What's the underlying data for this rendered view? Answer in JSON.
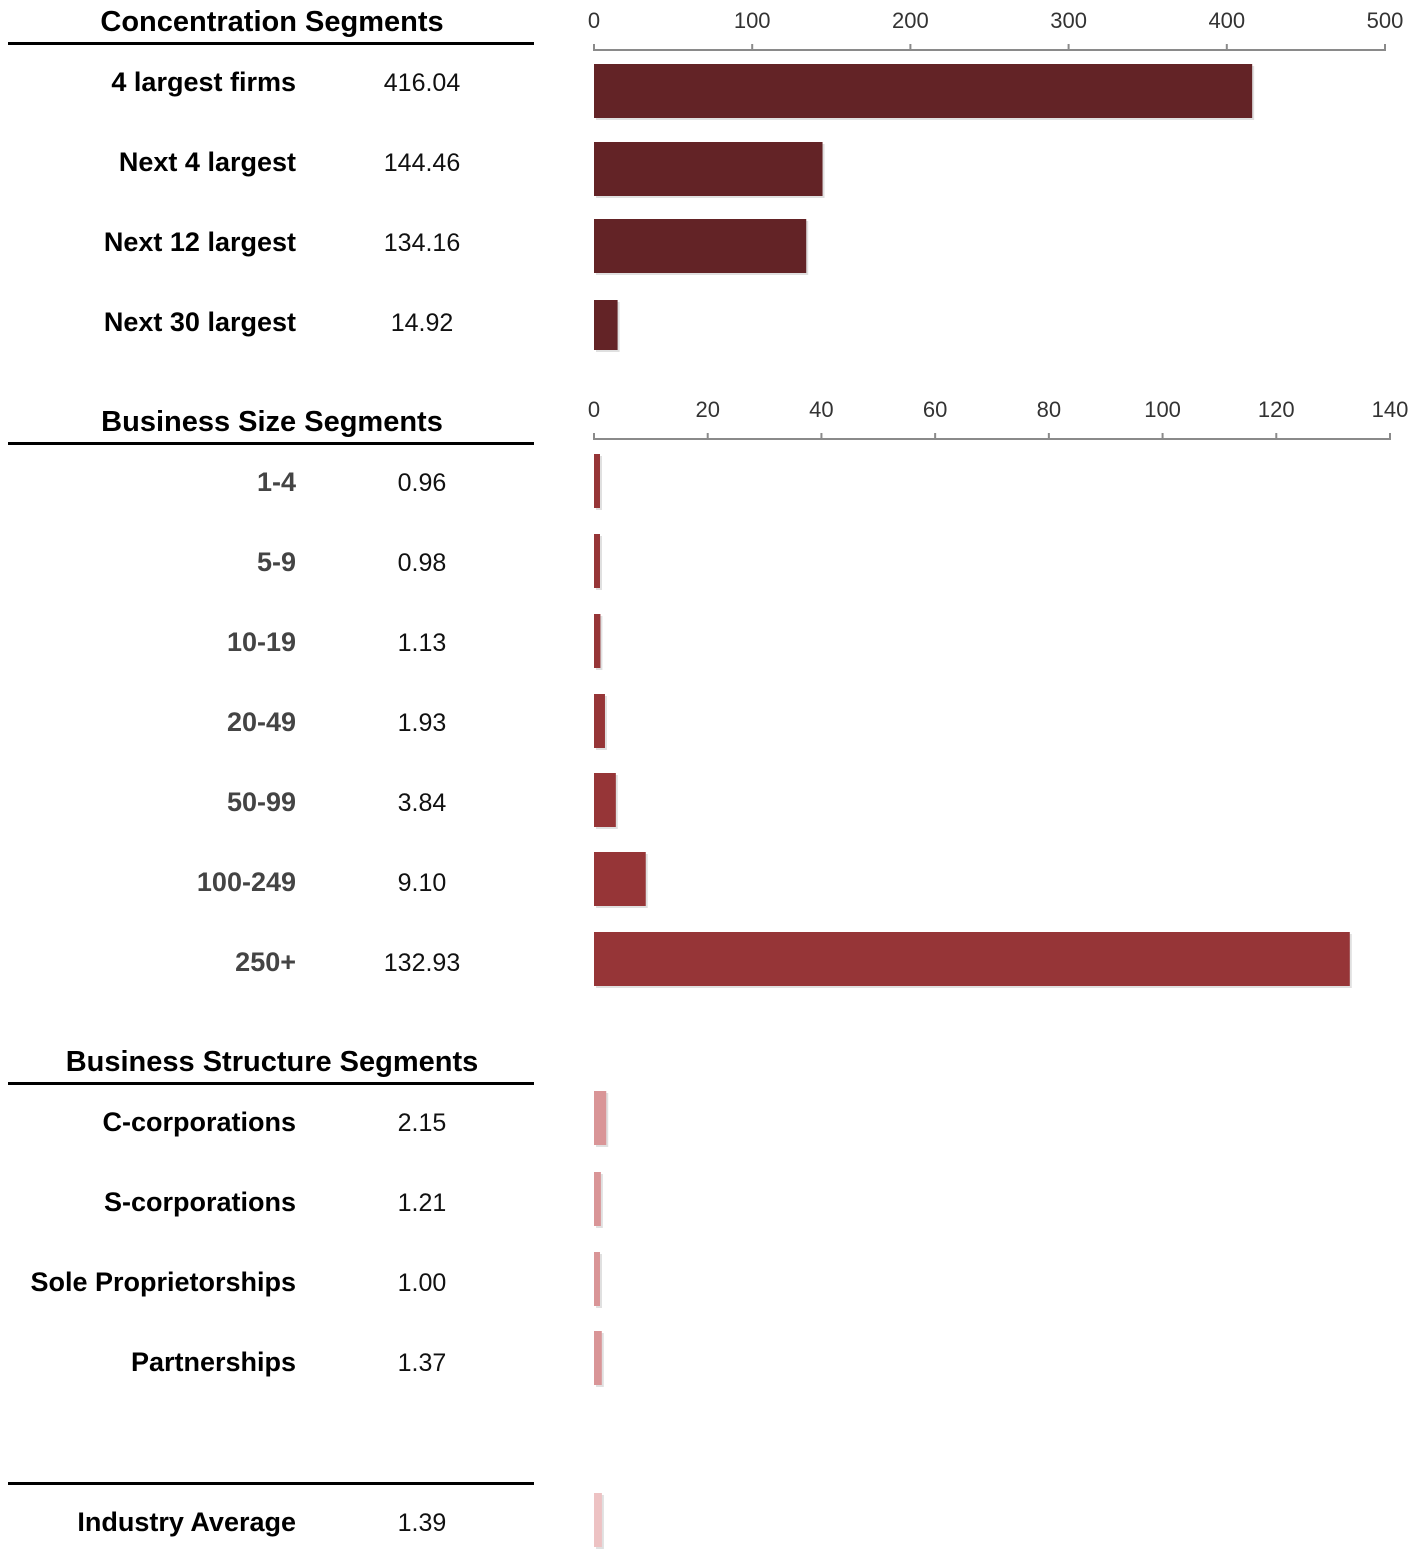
{
  "sections": [
    {
      "title": "Concentration Segments",
      "axis_ticks": [
        "0",
        "100",
        "200",
        "300",
        "400",
        "500"
      ],
      "rows": [
        {
          "label": "4 largest firms",
          "value": "416.04"
        },
        {
          "label": "Next 4 largest",
          "value": "144.46"
        },
        {
          "label": "Next 12 largest",
          "value": "134.16"
        },
        {
          "label": "Next 30 largest",
          "value": "14.92"
        }
      ]
    },
    {
      "title": "Business Size Segments",
      "axis_ticks": [
        "0",
        "20",
        "40",
        "60",
        "80",
        "100",
        "120",
        "140"
      ],
      "rows": [
        {
          "label": "1-4",
          "value": "0.96"
        },
        {
          "label": "5-9",
          "value": "0.98"
        },
        {
          "label": "10-19",
          "value": "1.13"
        },
        {
          "label": "20-49",
          "value": "1.93"
        },
        {
          "label": "50-99",
          "value": "3.84"
        },
        {
          "label": "100-249",
          "value": "9.10"
        },
        {
          "label": "250+",
          "value": "132.93"
        }
      ]
    },
    {
      "title": "Business Structure Segments",
      "rows": [
        {
          "label": "C-corporations",
          "value": "2.15"
        },
        {
          "label": "S-corporations",
          "value": "1.21"
        },
        {
          "label": "Sole Proprietorships",
          "value": "1.00"
        },
        {
          "label": "Partnerships",
          "value": "1.37"
        }
      ]
    },
    {
      "title": "",
      "rows": [
        {
          "label": "Industry Average",
          "value": "1.39"
        }
      ]
    }
  ],
  "chart_data": [
    {
      "type": "bar",
      "orientation": "horizontal",
      "title": "Concentration Segments",
      "categories": [
        "4 largest firms",
        "Next 4 largest",
        "Next 12 largest",
        "Next 30 largest"
      ],
      "values": [
        416.04,
        144.46,
        134.16,
        14.92
      ],
      "xlim": [
        0,
        500
      ],
      "color": "#632326"
    },
    {
      "type": "bar",
      "orientation": "horizontal",
      "title": "Business Size Segments",
      "categories": [
        "1-4",
        "5-9",
        "10-19",
        "20-49",
        "50-99",
        "100-249",
        "250+"
      ],
      "values": [
        0.96,
        0.98,
        1.13,
        1.93,
        3.84,
        9.1,
        132.93
      ],
      "xlim": [
        0,
        140
      ],
      "color": "#963537"
    },
    {
      "type": "bar",
      "orientation": "horizontal",
      "title": "Business Structure Segments",
      "categories": [
        "C-corporations",
        "S-corporations",
        "Sole Proprietorships",
        "Partnerships"
      ],
      "values": [
        2.15,
        1.21,
        1.0,
        1.37
      ],
      "xlim": [
        0,
        140
      ],
      "color": "#D99597"
    },
    {
      "type": "bar",
      "orientation": "horizontal",
      "categories": [
        "Industry Average"
      ],
      "values": [
        1.39
      ],
      "xlim": [
        0,
        140
      ],
      "color": "#EDC2C3"
    }
  ]
}
